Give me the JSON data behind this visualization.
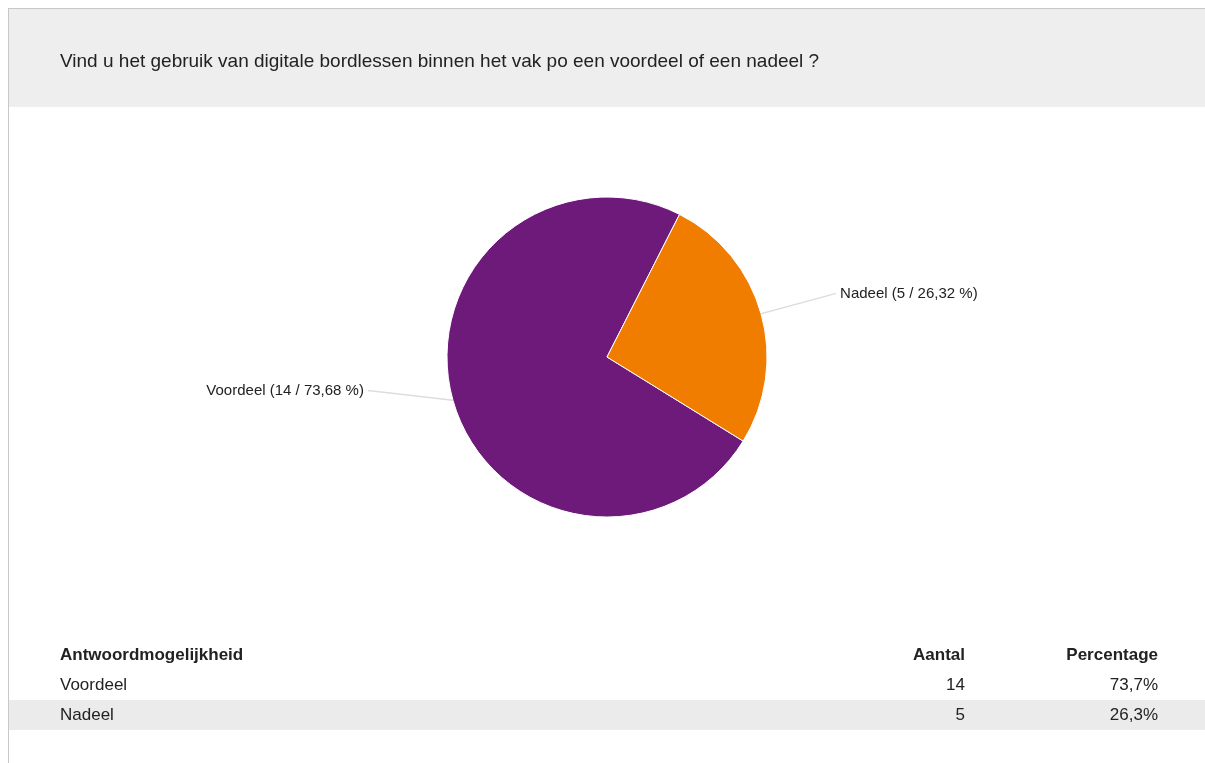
{
  "chart_data": {
    "type": "pie",
    "title": "Vind u het gebruik van digitale bordlessen binnen het vak po een voordeel of een nadeel ?",
    "categories": [
      "Voordeel",
      "Nadeel"
    ],
    "values": [
      14,
      5
    ],
    "colors": [
      "#6e1a7a",
      "#f07c00"
    ],
    "value_labels": [
      "(14 / 73,68 %)",
      "(5 / 26,32 %)"
    ],
    "annotations": [
      "Antwoordmogelijkheid",
      "Aantal",
      "Percentage",
      "Voordeel",
      "14",
      "73,7%",
      "Nadeel",
      "5",
      "26,3%"
    ]
  }
}
